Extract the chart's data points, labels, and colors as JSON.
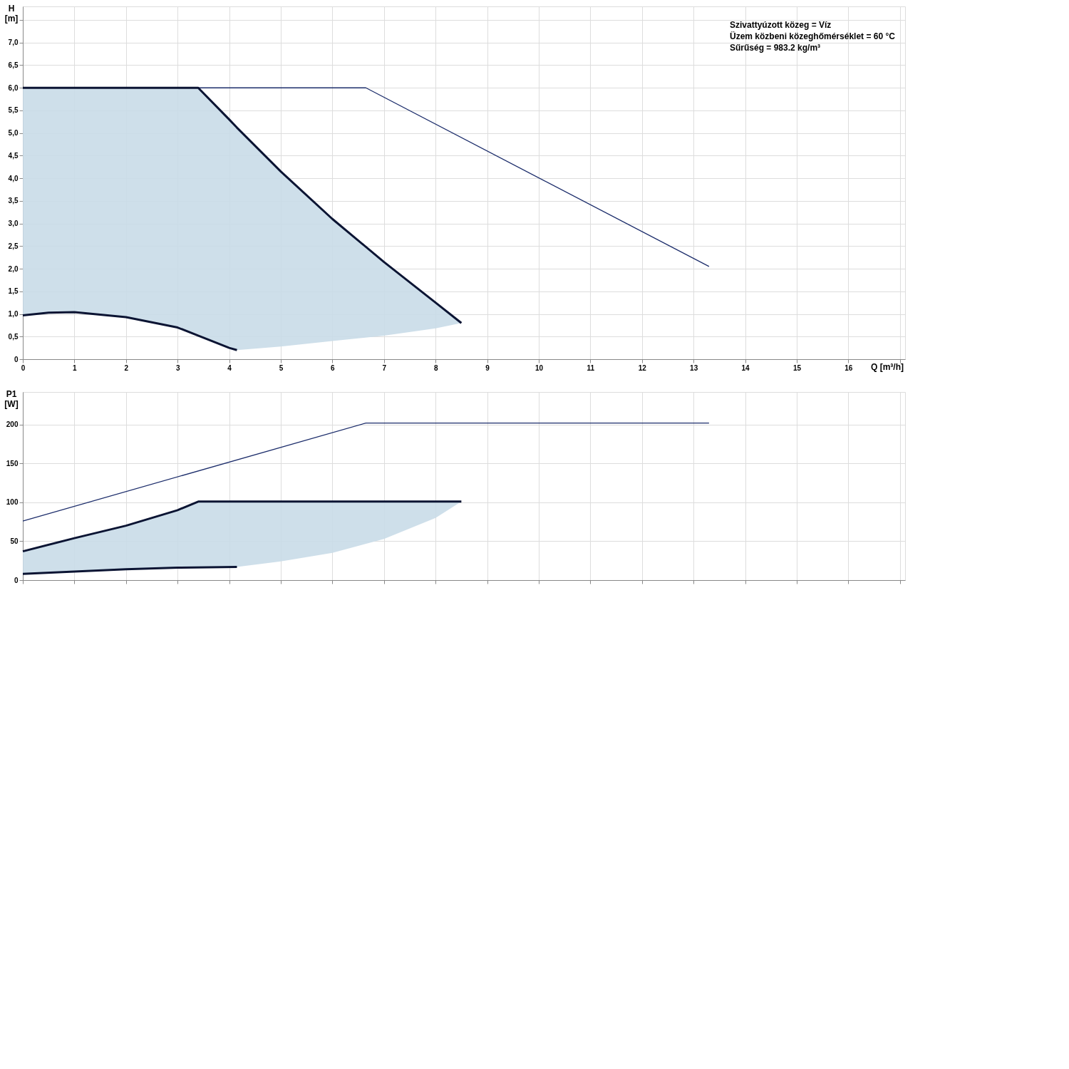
{
  "chart_data": [
    {
      "type": "line",
      "ylabel": "H [m]",
      "xlabel": "Q [m³/h]",
      "xlim": [
        0,
        17.1
      ],
      "xticks": [
        0,
        1,
        2,
        3,
        4,
        5,
        6,
        7,
        8,
        9,
        10,
        11,
        12,
        13,
        14,
        15,
        16,
        {
          "value": 17,
          "label": null
        }
      ],
      "ylim": [
        0,
        7.8
      ],
      "yticks": [
        0,
        {
          "value": 0.5,
          "label": "0,5"
        },
        {
          "value": 1,
          "label": "1,0"
        },
        {
          "value": 1.5,
          "label": "1,5"
        },
        {
          "value": 2,
          "label": "2,0"
        },
        {
          "value": 2.5,
          "label": "2,5"
        },
        {
          "value": 3,
          "label": "3,0"
        },
        {
          "value": 3.5,
          "label": "3,5"
        },
        {
          "value": 4,
          "label": "4,0"
        },
        {
          "value": 4.5,
          "label": "4,5"
        },
        {
          "value": 5,
          "label": "5,0"
        },
        {
          "value": 5.5,
          "label": "5,5"
        },
        {
          "value": 6,
          "label": "6,0"
        },
        {
          "value": 6.5,
          "label": "6,5"
        },
        {
          "value": 7,
          "label": "7,0"
        },
        {
          "value": 7.5,
          "label": null
        }
      ],
      "grid": true,
      "series": [
        {
          "color": "#1c2d6b",
          "x": [
            0,
            6.65,
            13.3
          ],
          "values": [
            6,
            6,
            2.05
          ]
        },
        {
          "color": "#0b1433",
          "x": [
            0,
            0.5,
            1,
            2,
            3,
            3.4,
            4,
            4.15,
            5,
            6,
            7,
            8,
            8.5
          ],
          "values": [
            6,
            6,
            6,
            6,
            6,
            6,
            5.3,
            5.12,
            4.15,
            3.1,
            2.15,
            1.25,
            0.8
          ],
          "upper": [
            6,
            6,
            6,
            6,
            6,
            6,
            5.3,
            5.12,
            4.15,
            3.1,
            2.15,
            1.25,
            0.8
          ],
          "lower": [
            0.97,
            1.03,
            1.04,
            0.93,
            0.7,
            0.55,
            0.25,
            0.2,
            0.28,
            0.4,
            0.52,
            0.68,
            0.8
          ]
        },
        {
          "color": "#0b1433",
          "x": [
            0,
            0.5,
            1,
            2,
            3,
            4,
            4.15
          ],
          "values": [
            0.97,
            1.03,
            1.04,
            0.93,
            0.7,
            0.25,
            0.2
          ]
        }
      ],
      "annotations": [
        "Szivattyúzott közeg = Víz",
        "Üzem közbeni közeghőmérséklet = 60 °C",
        "Sűrűség = 983.2 kg/m³"
      ]
    },
    {
      "type": "line",
      "ylabel": "P1 [W]",
      "xlim": [
        0,
        17.1
      ],
      "xticks": [
        0,
        1,
        2,
        3,
        4,
        5,
        6,
        7,
        8,
        9,
        10,
        11,
        12,
        13,
        14,
        15,
        16,
        17
      ],
      "ylim": [
        0,
        242
      ],
      "yticks": [
        0,
        50,
        100,
        150,
        200
      ],
      "grid": true,
      "tick_labels": "y",
      "series": [
        {
          "color": "#1c2d6b",
          "x": [
            0,
            6.65,
            13.3
          ],
          "values": [
            76,
            202,
            202
          ]
        },
        {
          "color": "#0b1433",
          "x": [
            0,
            1,
            2,
            3,
            3.4,
            4.15,
            5,
            6,
            7,
            8,
            8.5
          ],
          "values": [
            37,
            54,
            70,
            90,
            101,
            101,
            101,
            101,
            101,
            101,
            101
          ],
          "upper": [
            37,
            54,
            70,
            90,
            101,
            101,
            101,
            101,
            101,
            101,
            101
          ],
          "lower": [
            8,
            11,
            14,
            16,
            17,
            17,
            24,
            35,
            53,
            80,
            101
          ]
        },
        {
          "color": "#0b1433",
          "x": [
            0,
            1,
            2,
            3,
            4.15
          ],
          "values": [
            8,
            11,
            14,
            16,
            17
          ]
        }
      ]
    }
  ]
}
